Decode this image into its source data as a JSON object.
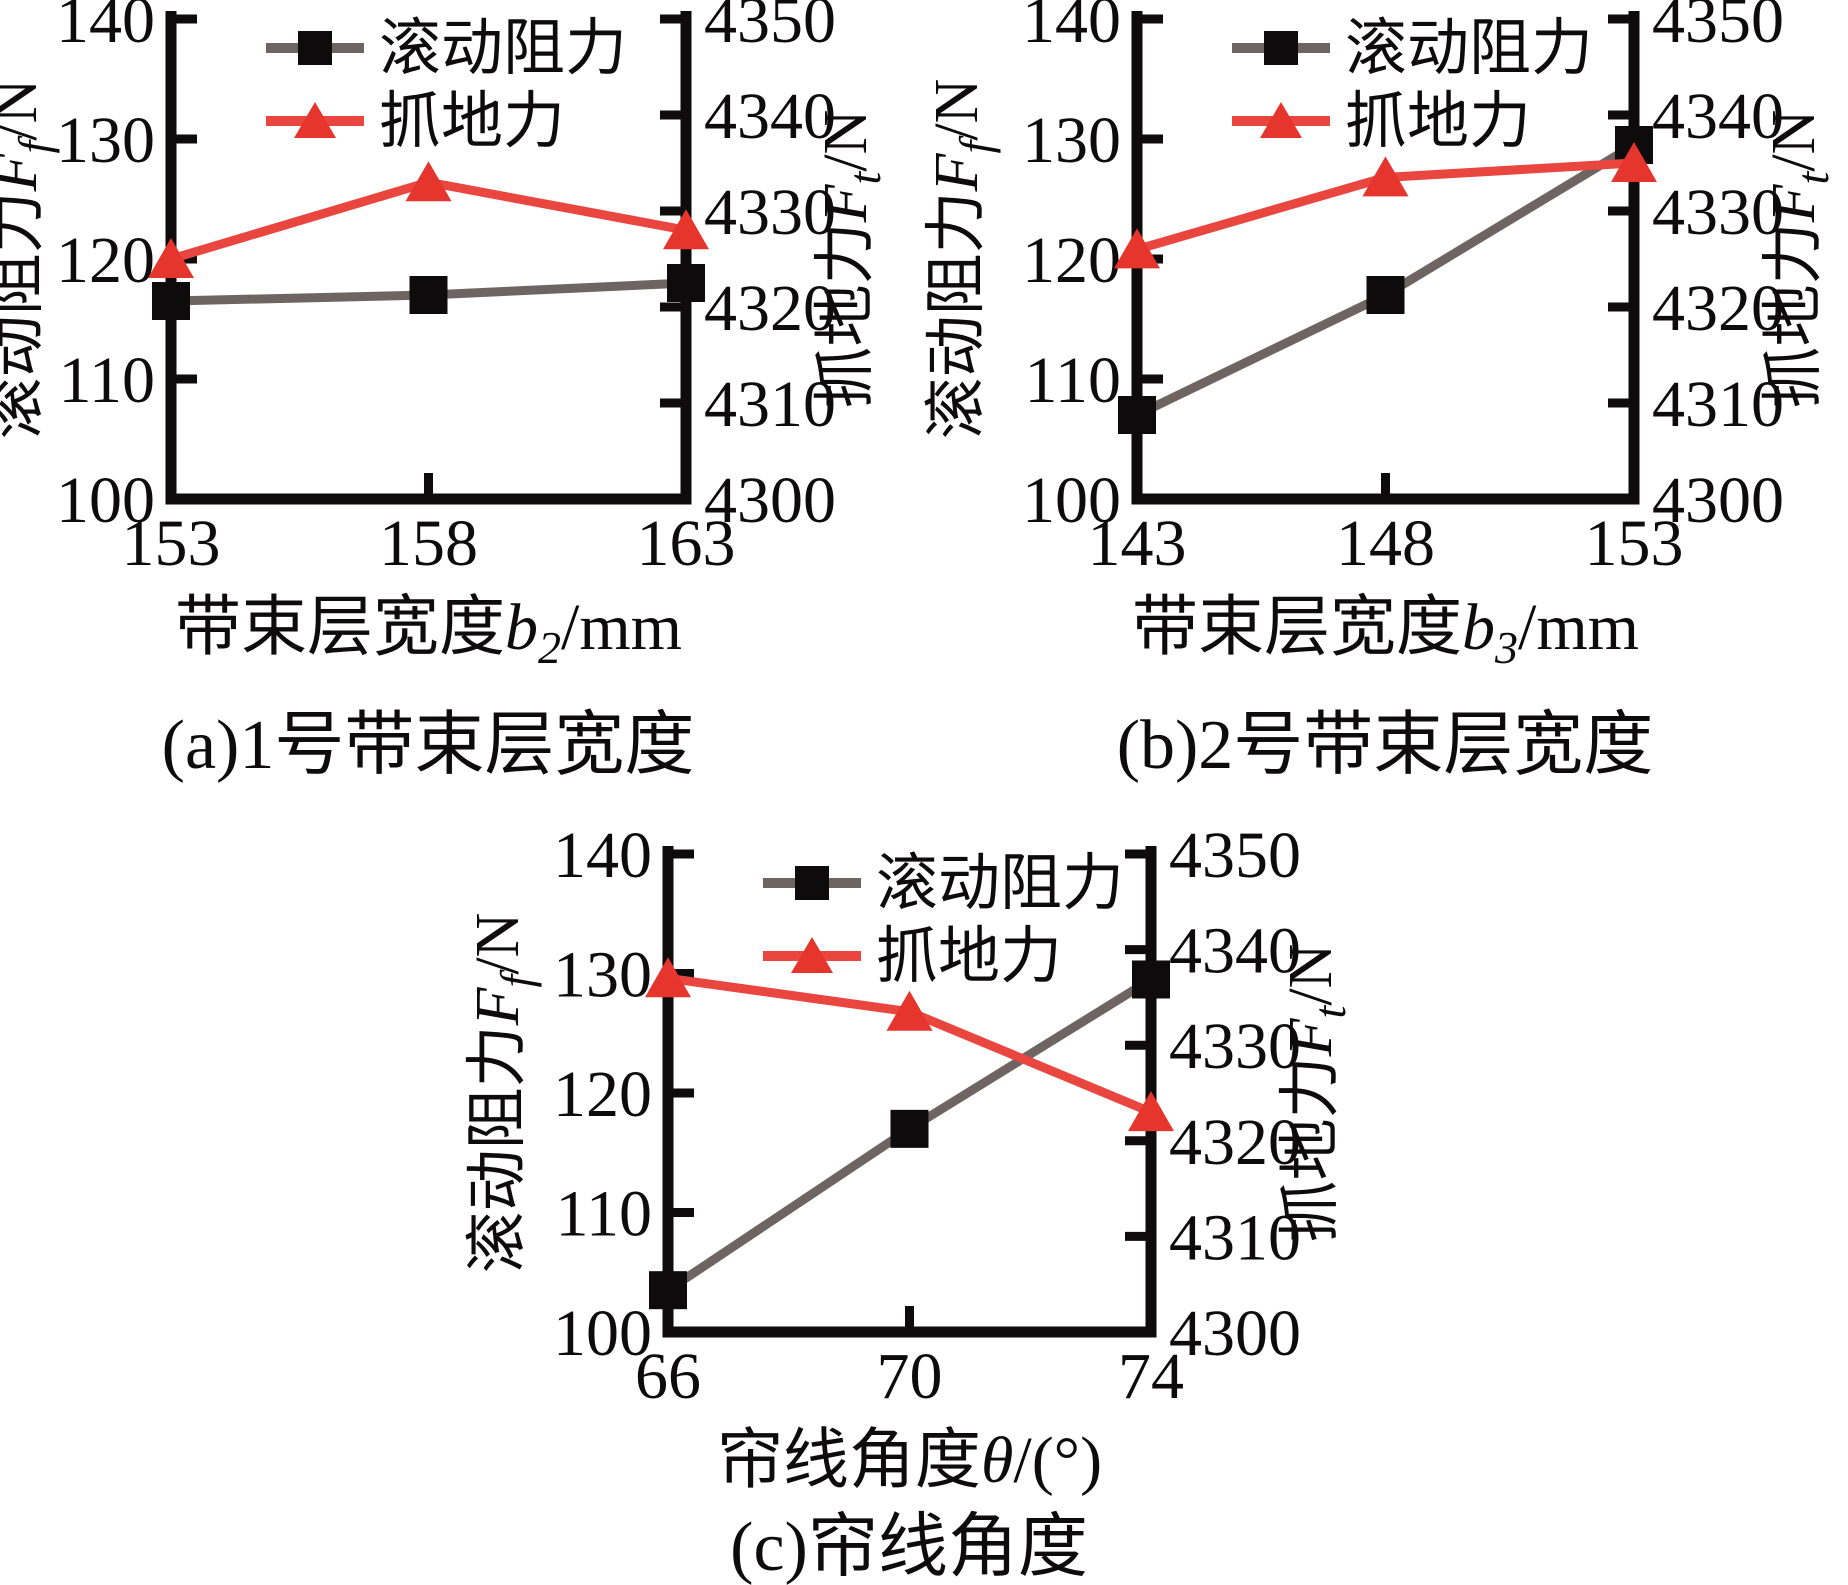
{
  "figure": {
    "background": "#ffffff",
    "colors": {
      "axis": "#0d0b0b",
      "text": "#0d0b0b",
      "rolling_line": "#6e6462",
      "rolling_marker": "#0d0b0b",
      "grip_line": "#e8463f",
      "grip_marker": "#e6352c"
    },
    "legend": {
      "rolling_label": "滚动阻力",
      "grip_label": "抓地力"
    },
    "left_axis_label": {
      "zh": "滚动阻力",
      "var": "F",
      "sub": "f",
      "unit": "/N"
    },
    "right_axis_label": {
      "zh": "抓地力",
      "var": "F",
      "sub": "t",
      "unit": "/N"
    }
  },
  "chart_data": [
    {
      "id": "a",
      "type": "line",
      "caption": "(a)1号带束层宽度",
      "xlabel": {
        "zh": "带束层宽度",
        "var": "b",
        "sub": "2",
        "unit": "/mm"
      },
      "x": [
        153,
        158,
        163
      ],
      "left_axis": {
        "title": "滚动阻力 Ff/N",
        "lim": [
          100,
          140
        ],
        "ticks": [
          100,
          110,
          120,
          130,
          140
        ]
      },
      "right_axis": {
        "title": "抓地力 Ft/N",
        "lim": [
          4300,
          4350
        ],
        "ticks": [
          4300,
          4310,
          4320,
          4330,
          4340,
          4350
        ]
      },
      "series": [
        {
          "name": "滚动阻力",
          "axis": "left",
          "marker": "square",
          "values": [
            116.5,
            117,
            118
          ]
        },
        {
          "name": "抓地力",
          "axis": "right",
          "marker": "triangle",
          "values": [
            4325,
            4333,
            4328
          ]
        }
      ]
    },
    {
      "id": "b",
      "type": "line",
      "caption": "(b)2号带束层宽度",
      "xlabel": {
        "zh": "带束层宽度",
        "var": "b",
        "sub": "3",
        "unit": "/mm"
      },
      "x": [
        143,
        148,
        153
      ],
      "left_axis": {
        "title": "滚动阻力 Ff/N",
        "lim": [
          100,
          140
        ],
        "ticks": [
          100,
          110,
          120,
          130,
          140
        ]
      },
      "right_axis": {
        "title": "抓地力 Ft/N",
        "lim": [
          4300,
          4350
        ],
        "ticks": [
          4300,
          4310,
          4320,
          4330,
          4340,
          4350
        ]
      },
      "series": [
        {
          "name": "滚动阻力",
          "axis": "left",
          "marker": "square",
          "values": [
            107,
            117,
            129.5
          ]
        },
        {
          "name": "抓地力",
          "axis": "right",
          "marker": "triangle",
          "values": [
            4326,
            4333.5,
            4335
          ]
        }
      ]
    },
    {
      "id": "c",
      "type": "line",
      "caption": "(c)帘线角度",
      "xlabel": {
        "zh": "帘线角度",
        "var": "θ",
        "sub": "",
        "unit": "/(°)"
      },
      "x": [
        66,
        70,
        74
      ],
      "left_axis": {
        "title": "滚动阻力 Ff/N",
        "lim": [
          100,
          140
        ],
        "ticks": [
          100,
          110,
          120,
          130,
          140
        ]
      },
      "right_axis": {
        "title": "抓地力 Ft/N",
        "lim": [
          4300,
          4350
        ],
        "ticks": [
          4300,
          4310,
          4320,
          4330,
          4340,
          4350
        ]
      },
      "series": [
        {
          "name": "滚动阻力",
          "axis": "left",
          "marker": "square",
          "values": [
            103.5,
            117,
            129.5
          ]
        },
        {
          "name": "抓地力",
          "axis": "right",
          "marker": "triangle",
          "values": [
            4337,
            4333.5,
            4323
          ]
        }
      ]
    }
  ]
}
